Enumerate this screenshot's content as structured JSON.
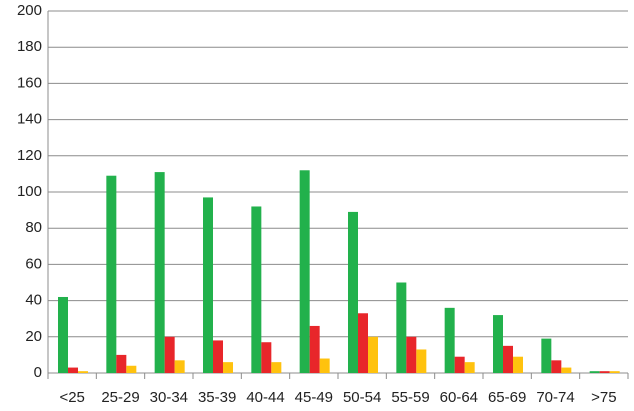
{
  "chart_data": {
    "type": "bar",
    "categories": [
      "<25",
      "25-29",
      "30-34",
      "35-39",
      "40-44",
      "45-49",
      "50-54",
      "55-59",
      "60-64",
      "65-69",
      "70-74",
      ">75"
    ],
    "series": [
      {
        "color": "#22b14c",
        "values": [
          42,
          109,
          111,
          97,
          92,
          112,
          89,
          50,
          36,
          32,
          19,
          1
        ]
      },
      {
        "color": "#e8262a",
        "values": [
          3,
          10,
          20,
          18,
          17,
          26,
          33,
          20,
          9,
          15,
          7,
          1
        ]
      },
      {
        "color": "#ffc20e",
        "values": [
          1,
          4,
          7,
          6,
          6,
          8,
          20,
          13,
          6,
          9,
          3,
          1
        ]
      }
    ],
    "ylim": [
      0,
      200
    ],
    "yticks": [
      0,
      20,
      40,
      60,
      80,
      100,
      120,
      140,
      160,
      180,
      200
    ],
    "grid": true
  }
}
